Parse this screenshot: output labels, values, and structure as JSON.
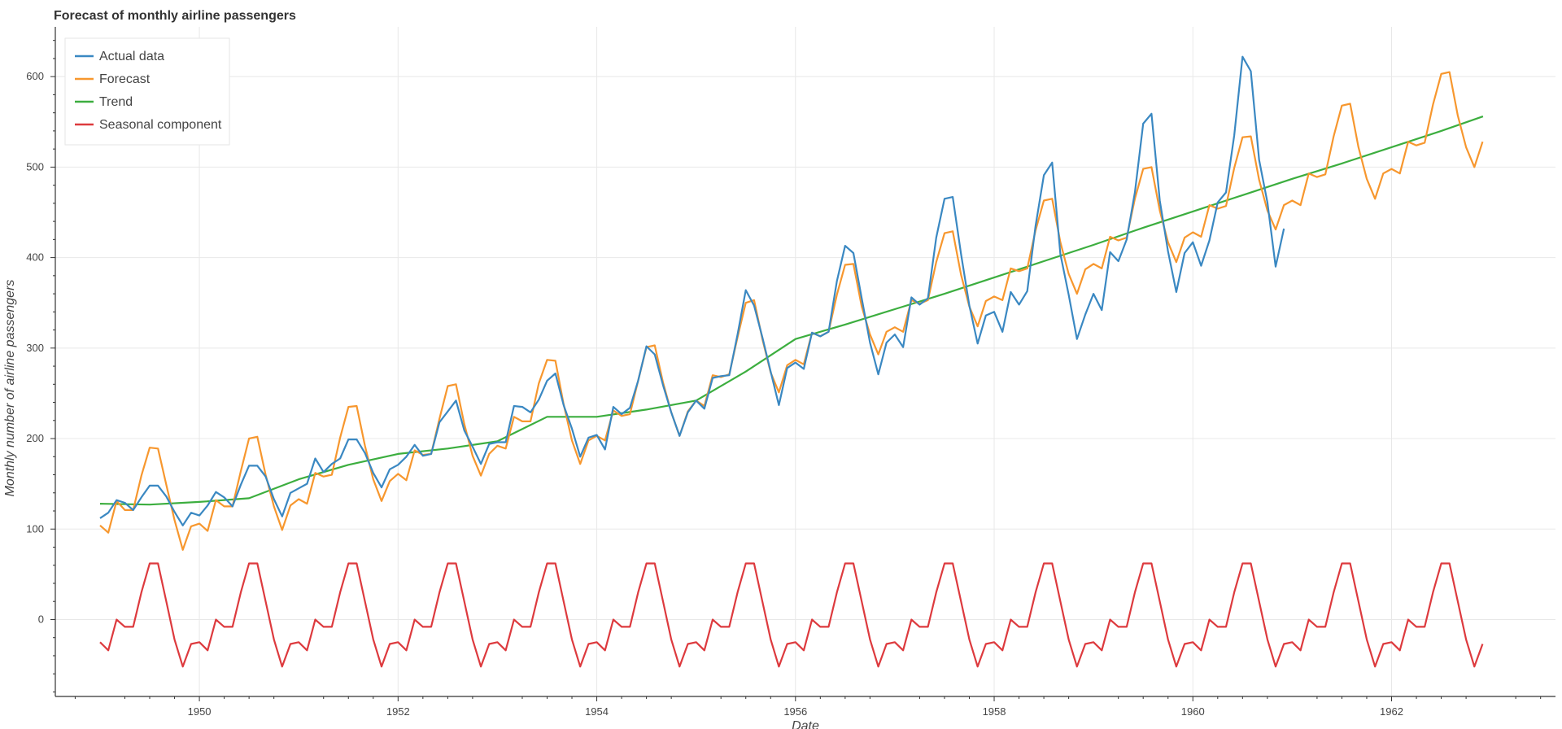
{
  "chart_data": {
    "type": "line",
    "title": "Forecast of monthly airline passengers",
    "xlabel": "Date",
    "ylabel": "Monthly number of airline passengers",
    "xlim": [
      1948.55,
      1963.65
    ],
    "ylim": [
      -85,
      655
    ],
    "x_ticks": [
      1950,
      1952,
      1954,
      1956,
      1958,
      1960,
      1962
    ],
    "y_ticks": [
      0,
      100,
      200,
      300,
      400,
      500,
      600
    ],
    "grid": true,
    "legend_position": "top-left",
    "colors": {
      "Actual data": "#3a88c2",
      "Forecast": "#f7972e",
      "Trend": "#3cae3f",
      "Seasonal component": "#dd3a3e"
    },
    "actual_start": 1949.0,
    "forecast_start": 1949.0,
    "series": [
      {
        "name": "Actual data",
        "values": [
          112,
          118,
          132,
          129,
          121,
          135,
          148,
          148,
          136,
          119,
          104,
          118,
          115,
          126,
          141,
          135,
          125,
          149,
          170,
          170,
          158,
          133,
          114,
          140,
          145,
          150,
          178,
          163,
          172,
          178,
          199,
          199,
          184,
          162,
          146,
          166,
          171,
          180,
          193,
          181,
          183,
          218,
          230,
          242,
          209,
          191,
          172,
          194,
          196,
          196,
          236,
          235,
          229,
          243,
          264,
          272,
          237,
          211,
          180,
          201,
          204,
          188,
          235,
          227,
          234,
          264,
          302,
          293,
          259,
          229,
          203,
          229,
          242,
          233,
          267,
          269,
          270,
          315,
          364,
          347,
          312,
          274,
          237,
          278,
          284,
          277,
          317,
          313,
          318,
          374,
          413,
          405,
          355,
          306,
          271,
          306,
          315,
          301,
          356,
          348,
          355,
          422,
          465,
          467,
          404,
          347,
          305,
          336,
          340,
          318,
          362,
          348,
          363,
          435,
          491,
          505,
          404,
          359,
          310,
          337,
          360,
          342,
          406,
          396,
          420,
          472,
          548,
          559,
          463,
          407,
          362,
          405,
          417,
          391,
          419,
          461,
          472,
          535,
          622,
          606,
          508,
          461,
          390,
          432
        ]
      },
      {
        "name": "Forecast",
        "values": [
          104,
          96,
          131,
          121,
          121,
          159,
          190,
          189,
          149,
          110,
          77,
          103,
          106,
          98,
          132,
          125,
          125,
          164,
          200,
          202,
          160,
          125,
          99,
          126,
          133,
          128,
          162,
          158,
          160,
          201,
          235,
          236,
          192,
          155,
          131,
          153,
          161,
          154,
          187,
          182,
          183,
          222,
          258,
          260,
          216,
          181,
          159,
          183,
          192,
          189,
          224,
          219,
          219,
          261,
          287,
          286,
          238,
          198,
          172,
          198,
          203,
          198,
          231,
          225,
          227,
          264,
          301,
          303,
          262,
          229,
          203,
          230,
          242,
          236,
          270,
          268,
          271,
          312,
          350,
          353,
          310,
          273,
          251,
          281,
          287,
          282,
          317,
          313,
          318,
          359,
          392,
          393,
          346,
          315,
          293,
          318,
          323,
          318,
          353,
          349,
          353,
          395,
          427,
          429,
          381,
          346,
          324,
          352,
          357,
          353,
          388,
          385,
          388,
          430,
          463,
          465,
          417,
          382,
          360,
          387,
          393,
          388,
          423,
          419,
          422,
          465,
          498,
          500,
          452,
          417,
          395,
          422,
          428,
          423,
          458,
          454,
          457,
          499,
          533,
          534,
          486,
          452,
          431,
          458,
          463,
          458,
          493,
          489,
          492,
          534,
          568,
          570,
          522,
          487,
          465,
          493,
          498,
          493,
          528,
          524,
          527,
          569,
          603,
          605,
          557,
          522,
          500,
          528
        ]
      },
      {
        "name": "Trend",
        "x": [
          1949.0,
          1949.5,
          1950.0,
          1950.5,
          1951.0,
          1951.5,
          1952.0,
          1952.5,
          1953.0,
          1953.5,
          1954.0,
          1954.5,
          1955.0,
          1955.5,
          1956.0,
          1956.5,
          1957.0,
          1957.5,
          1958.0,
          1958.5,
          1959.0,
          1959.5,
          1960.0,
          1960.5,
          1961.0,
          1961.5,
          1962.0,
          1962.5,
          1962.92
        ],
        "values": [
          128,
          127,
          130,
          134,
          155,
          171,
          183,
          189,
          197,
          224,
          224,
          232,
          242,
          274,
          310,
          326,
          343,
          360,
          378,
          396,
          414,
          433,
          451,
          469,
          487,
          504,
          522,
          540,
          556
        ]
      },
      {
        "name": "Seasonal component",
        "values": [
          -25,
          -34,
          0,
          -8,
          -8,
          30,
          62,
          62,
          20,
          -22,
          -52,
          -27
        ]
      }
    ]
  }
}
